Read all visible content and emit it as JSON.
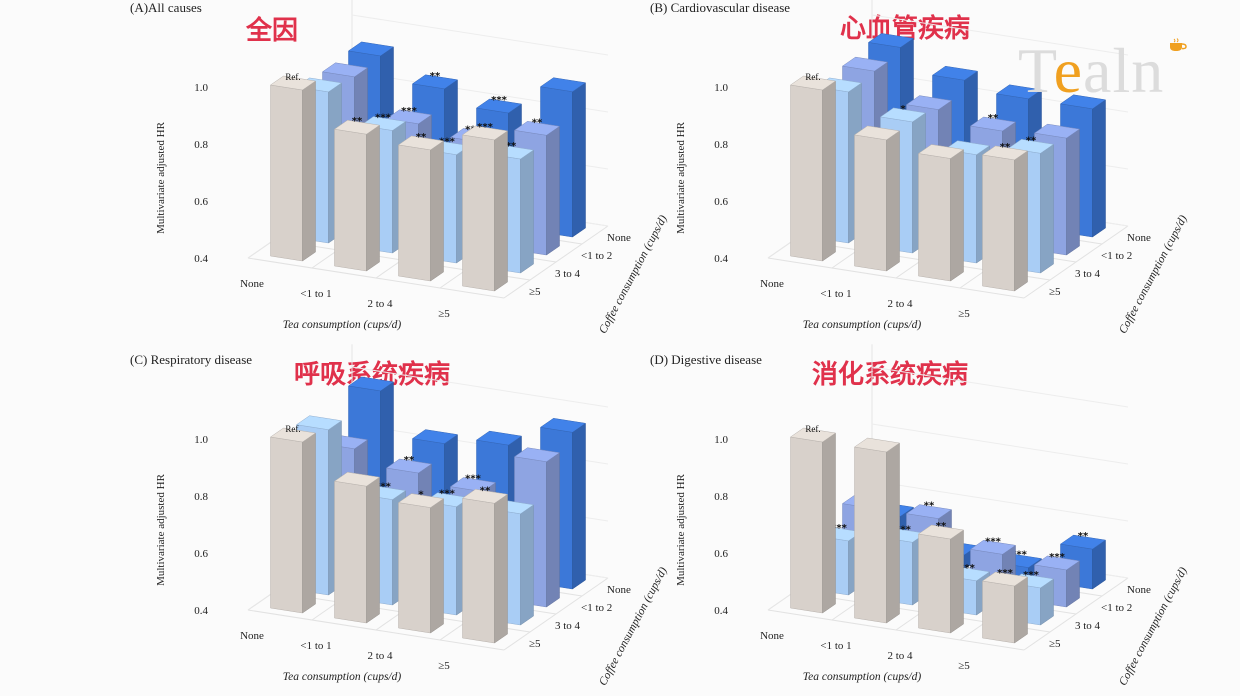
{
  "panels": [
    {
      "id": "A",
      "title": "(A)All causes",
      "title_cn": "全因"
    },
    {
      "id": "B",
      "title": "(B) Cardiovascular disease",
      "title_cn": "心血管疾病"
    },
    {
      "id": "C",
      "title": "(C) Respiratory disease",
      "title_cn": "呼吸系统疾病"
    },
    {
      "id": "D",
      "title": "(D) Digestive disease",
      "title_cn": "消化系统疾病"
    }
  ],
  "logo": {
    "text_t": "T",
    "text_e": "e",
    "text_rest": "aln"
  },
  "colors": {
    "tea_none": "#d8d1cb",
    "coffee_lt2": "#a9cdf5",
    "coffee_3to4": "#8ea4e2",
    "coffee_ge5": "#3c78d8"
  },
  "chart_data": [
    {
      "type": "bar3d",
      "title": "(A)All causes",
      "ylabel": "Multivariate adjusted HR",
      "xlabel": "Tea consumption (cups/d)",
      "zlabel": "Coffee consumption (cups/d)",
      "yticks": [
        0.4,
        0.6,
        0.8,
        1.0
      ],
      "ylim": [
        0.4,
        1.0
      ],
      "tea_categories": [
        "None",
        "<1 to 1",
        "2 to 4",
        "≥5"
      ],
      "coffee_categories": [
        "None",
        "<1 to 2",
        "3 to 4",
        "≥5"
      ],
      "values": [
        [
          1.0,
          0.88,
          0.86,
          0.93
        ],
        [
          0.93,
          0.83,
          0.78,
          0.8
        ],
        [
          0.92,
          0.79,
          0.76,
          0.82
        ],
        [
          0.93,
          0.85,
          0.8,
          0.91
        ]
      ],
      "labels": [
        [
          "Ref.",
          "**",
          "**",
          "***"
        ],
        [
          "",
          "***",
          "***",
          "**"
        ],
        [
          "",
          "***",
          "***",
          "**"
        ],
        [
          "",
          "**",
          "***",
          ""
        ]
      ]
    },
    {
      "type": "bar3d",
      "title": "(B) Cardiovascular disease",
      "ylabel": "Multivariate adjusted HR",
      "xlabel": "Tea consumption (cups/d)",
      "zlabel": "Coffee consumption (cups/d)",
      "yticks": [
        0.4,
        0.6,
        0.8,
        1.0
      ],
      "ylim": [
        0.4,
        1.0
      ],
      "tea_categories": [
        "None",
        "<1 to 1",
        "2 to 4",
        "≥5"
      ],
      "coffee_categories": [
        "None",
        "<1 to 2",
        "3 to 4",
        "≥5"
      ],
      "values": [
        [
          1.0,
          0.86,
          0.83,
          0.86
        ],
        [
          0.93,
          0.86,
          0.78,
          0.82
        ],
        [
          0.94,
          0.84,
          0.8,
          0.81
        ],
        [
          0.96,
          0.88,
          0.85,
          0.85
        ]
      ],
      "labels": [
        [
          "Ref.",
          "",
          "",
          "**"
        ],
        [
          "",
          "*",
          "",
          "**"
        ],
        [
          "",
          "",
          "**",
          ""
        ],
        [
          "",
          "",
          "",
          ""
        ]
      ]
    },
    {
      "type": "bar3d",
      "title": "(C) Respiratory disease",
      "ylabel": "Multivariate adjusted HR",
      "xlabel": "Tea consumption (cups/d)",
      "zlabel": "Coffee consumption (cups/d)",
      "yticks": [
        0.4,
        0.6,
        0.8,
        1.0
      ],
      "ylim": [
        0.4,
        1.0
      ],
      "tea_categories": [
        "None",
        "<1 to 1",
        "2 to 4",
        "≥5"
      ],
      "coffee_categories": [
        "None",
        "<1 to 2",
        "3 to 4",
        "≥5"
      ],
      "values": [
        [
          1.0,
          0.88,
          0.84,
          0.89
        ],
        [
          0.98,
          0.77,
          0.78,
          0.79
        ],
        [
          0.85,
          0.8,
          0.77,
          0.91
        ],
        [
          0.99,
          0.84,
          0.87,
          0.95
        ]
      ],
      "labels": [
        [
          "Ref.",
          "",
          "*",
          "**"
        ],
        [
          "",
          "***",
          "***",
          ""
        ],
        [
          "",
          "**",
          "***",
          ""
        ],
        [
          "",
          "",
          "",
          ""
        ]
      ]
    },
    {
      "type": "bar3d",
      "title": "(D) Digestive disease",
      "ylabel": "Multivariate adjusted HR",
      "xlabel": "Tea consumption (cups/d)",
      "zlabel": "Coffee consumption (cups/d)",
      "yticks": [
        0.4,
        0.6,
        0.8,
        1.0
      ],
      "ylim": [
        0.4,
        1.0
      ],
      "tea_categories": [
        "None",
        "<1 to 1",
        "2 to 4",
        "≥5"
      ],
      "coffee_categories": [
        "None",
        "<1 to 2",
        "3 to 4",
        "≥5"
      ],
      "values": [
        [
          1.0,
          1.0,
          0.73,
          0.6
        ],
        [
          0.59,
          0.62,
          0.52,
          0.53
        ],
        [
          0.64,
          0.64,
          0.55,
          0.53
        ],
        [
          0.55,
          0.45,
          0.44,
          0.54
        ]
      ],
      "labels": [
        [
          "Ref.",
          "",
          "**",
          "***"
        ],
        [
          "***",
          "***",
          "***",
          "***"
        ],
        [
          "*",
          "**",
          "***",
          "***"
        ],
        [
          "***",
          "***",
          "***",
          "**"
        ]
      ]
    }
  ]
}
